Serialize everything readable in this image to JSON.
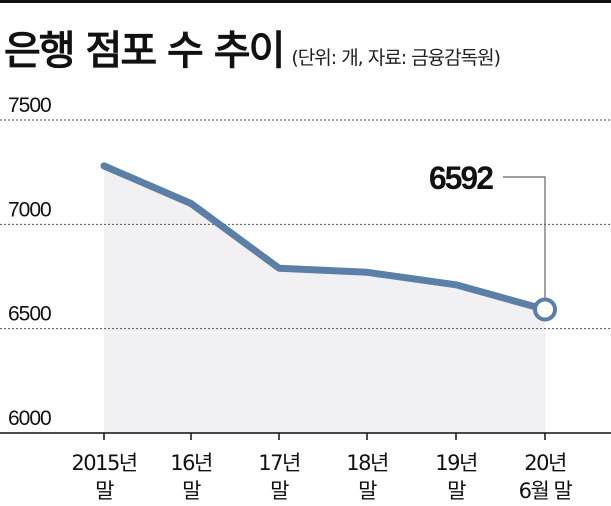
{
  "title": "은행 점포 수 추이",
  "subtitle": "(단위: 개, 자료: 금융감독원)",
  "colors": {
    "line": "#5b7fa6",
    "area": "#f1f1f4",
    "grid": "#555555",
    "marker_fill": "#ffffff"
  },
  "chart_data": {
    "type": "line",
    "categories": [
      [
        "2015년",
        "말"
      ],
      [
        "16년",
        "말"
      ],
      [
        "17년",
        "말"
      ],
      [
        "18년",
        "말"
      ],
      [
        "19년",
        "말"
      ],
      [
        "20년",
        "6월 말"
      ]
    ],
    "values": [
      7280,
      7100,
      6790,
      6770,
      6710,
      6592
    ],
    "ylim": [
      6000,
      7500
    ],
    "yticks": [
      7500,
      7000,
      6500,
      6000
    ],
    "grid": true,
    "callout": {
      "index": 5,
      "label": "6592"
    }
  }
}
